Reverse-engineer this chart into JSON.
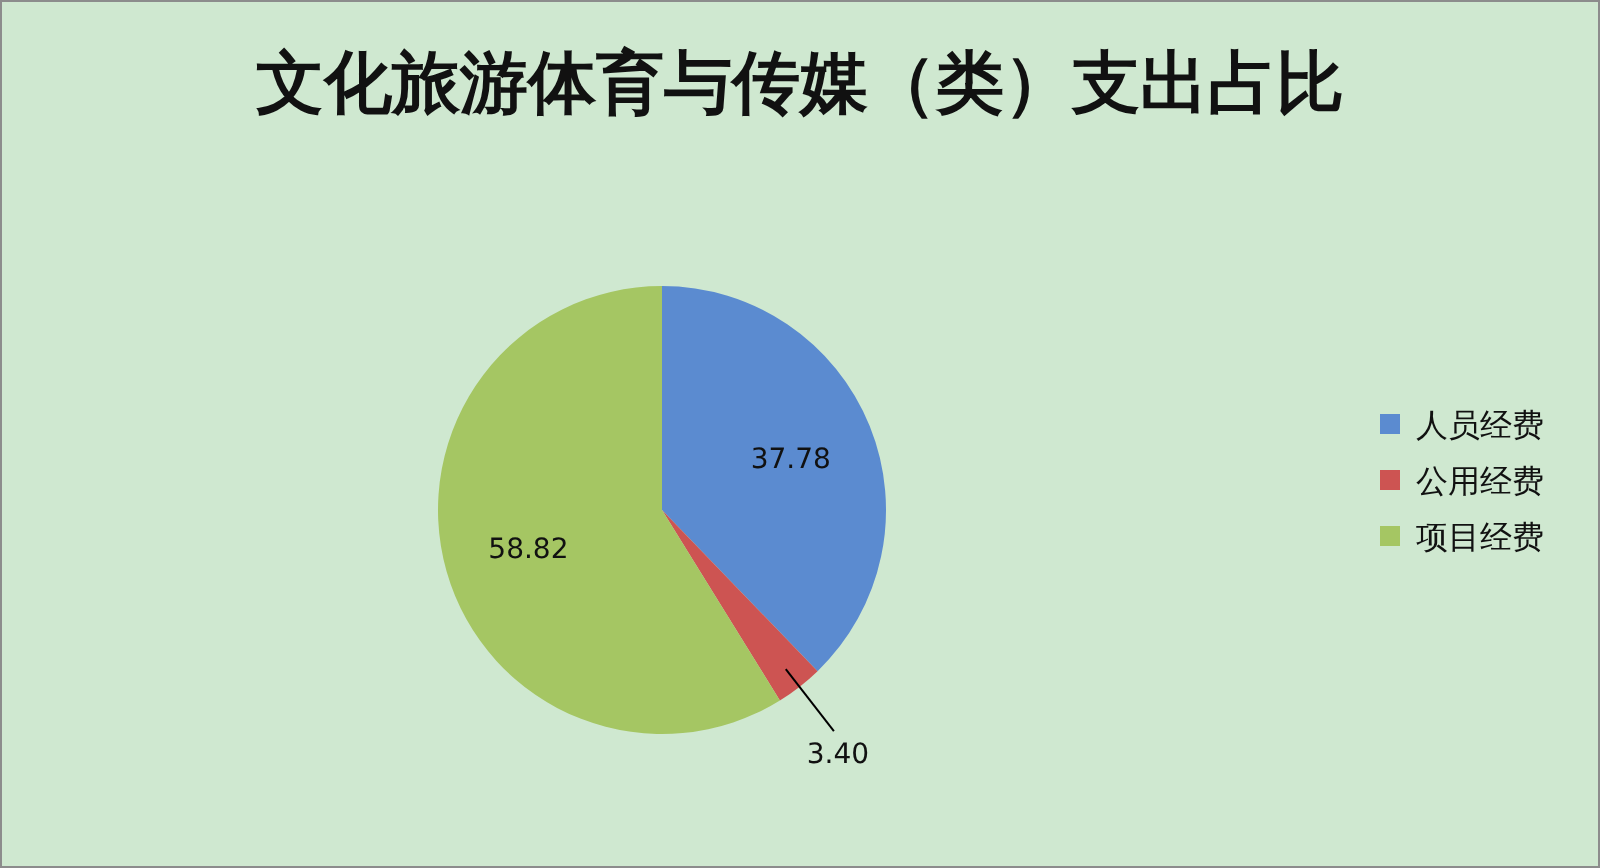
{
  "chart_data": {
    "type": "pie",
    "title": "文化旅游体育与传媒（类）支出占比",
    "categories": [
      "人员经费",
      "公用经费",
      "项目经费"
    ],
    "values": [
      37.78,
      3.4,
      58.82
    ],
    "colors": [
      "#5b8bd0",
      "#cd5452",
      "#a5c663"
    ],
    "value_labels": [
      "37.78",
      "3.40",
      "58.82"
    ],
    "legend": "right"
  }
}
